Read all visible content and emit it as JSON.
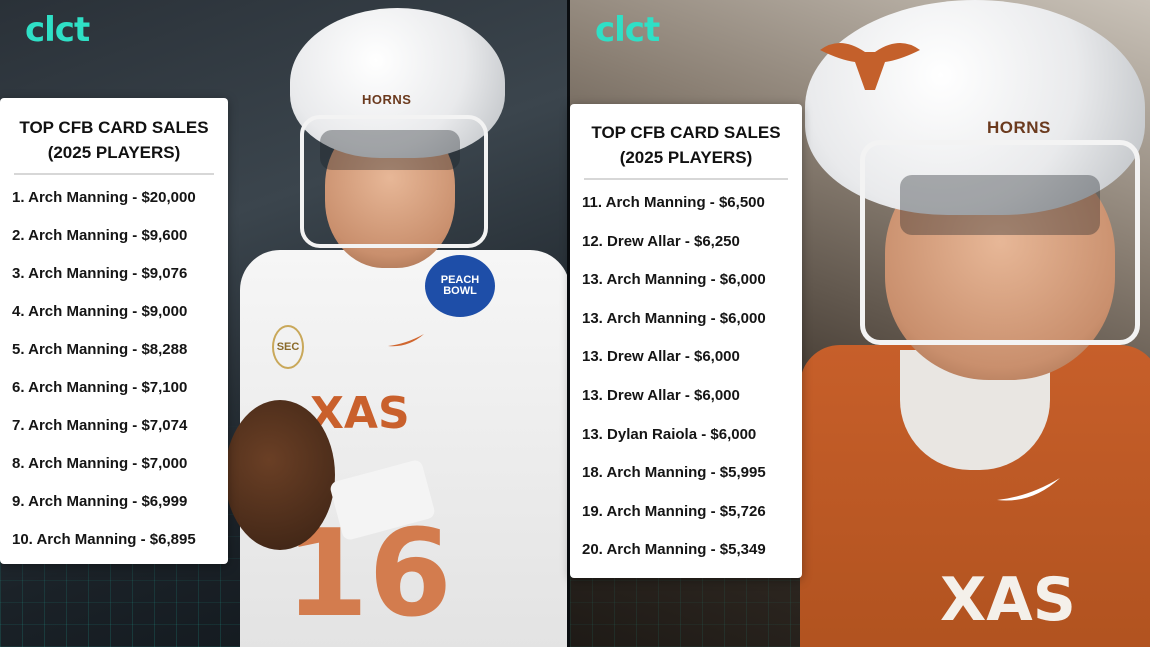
{
  "brand": {
    "logo_text": "clct",
    "accent": "#2fe0c6"
  },
  "left_panel": {
    "helmet_text": "HORNS",
    "jersey_text": "XAS",
    "jersey_number": "16",
    "badge_text": "PEACH BOWL",
    "sec_text": "SEC",
    "card": {
      "title_line1": "TOP CFB CARD SALES",
      "title_line2": "(2025 PLAYERS)",
      "rows": [
        "1. Arch Manning - $20,000",
        "2. Arch Manning - $9,600",
        "3. Arch Manning - $9,076",
        "4. Arch Manning - $9,000",
        "5. Arch Manning - $8,288",
        "6. Arch Manning - $7,100",
        "7. Arch Manning - $7,074",
        "8. Arch Manning - $7,000",
        "9. Arch Manning - $6,999",
        "10. Arch Manning - $6,895"
      ]
    }
  },
  "right_panel": {
    "helmet_text": "HORNS",
    "jersey_text": "XAS",
    "card": {
      "title_line1": "TOP CFB CARD SALES",
      "title_line2": "(2025 PLAYERS)",
      "rows": [
        "11. Arch Manning - $6,500",
        "12. Drew Allar - $6,250",
        "13. Arch Manning - $6,000",
        "13. Arch Manning - $6,000",
        "13. Drew Allar - $6,000",
        "13. Drew Allar - $6,000",
        "13. Dylan Raiola - $6,000",
        "18. Arch Manning - $5,995",
        "19. Arch Manning - $5,726",
        "20. Arch Manning - $5,349"
      ]
    }
  }
}
